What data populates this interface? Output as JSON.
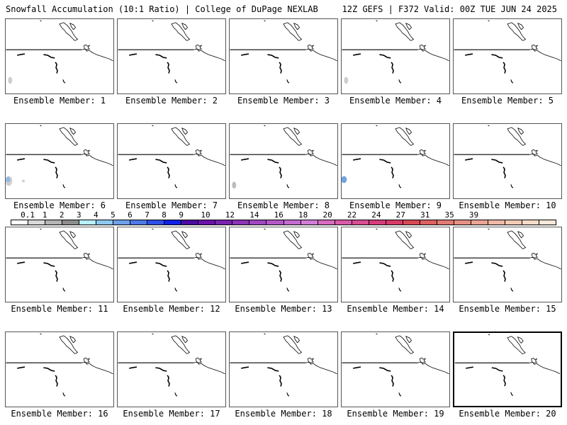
{
  "header": {
    "title_left": "Snowfall Accumulation (10:1 Ratio) | College of DuPage NEXLAB",
    "title_right": "12Z GEFS | F372 Valid: 00Z TUE JUN 24 2025"
  },
  "panels": [
    {
      "label": "Ensemble Member: 1",
      "snow_patches": [
        {
          "shape": "small-gray-patch",
          "color": "#cfcfcf"
        }
      ]
    },
    {
      "label": "Ensemble Member: 2",
      "snow_patches": []
    },
    {
      "label": "Ensemble Member: 3",
      "snow_patches": []
    },
    {
      "label": "Ensemble Member: 4",
      "snow_patches": [
        {
          "shape": "small-gray-patch",
          "color": "#cfcfcf"
        }
      ]
    },
    {
      "label": "Ensemble Member: 5",
      "snow_patches": []
    },
    {
      "label": "Ensemble Member: 6",
      "snow_patches": [
        {
          "shape": "blue-gray-patch",
          "color": "#8fb8e8"
        }
      ]
    },
    {
      "label": "Ensemble Member: 7",
      "snow_patches": []
    },
    {
      "label": "Ensemble Member: 8",
      "snow_patches": [
        {
          "shape": "small-gray-patch",
          "color": "#bdbdbd"
        }
      ]
    },
    {
      "label": "Ensemble Member: 9",
      "snow_patches": [
        {
          "shape": "blue-patch",
          "color": "#6fa4e0"
        }
      ]
    },
    {
      "label": "Ensemble Member: 10",
      "snow_patches": []
    },
    {
      "label": "Ensemble Member: 11",
      "snow_patches": []
    },
    {
      "label": "Ensemble Member: 12",
      "snow_patches": []
    },
    {
      "label": "Ensemble Member: 13",
      "snow_patches": []
    },
    {
      "label": "Ensemble Member: 14",
      "snow_patches": []
    },
    {
      "label": "Ensemble Member: 15",
      "snow_patches": []
    },
    {
      "label": "Ensemble Member: 16",
      "snow_patches": []
    },
    {
      "label": "Ensemble Member: 17",
      "snow_patches": []
    },
    {
      "label": "Ensemble Member: 18",
      "snow_patches": []
    },
    {
      "label": "Ensemble Member: 19",
      "snow_patches": []
    },
    {
      "label": "Ensemble Member: 20",
      "snow_patches": []
    }
  ],
  "colorbar": {
    "labels": [
      "0.1",
      "1",
      "2",
      "3",
      "4",
      "5",
      "6",
      "7",
      "8",
      "9",
      "10",
      "12",
      "14",
      "16",
      "18",
      "20",
      "22",
      "24",
      "27",
      "31",
      "35",
      "39"
    ],
    "colors": [
      "#ffffff",
      "#d8d8d8",
      "#b4b4b4",
      "#8c8c8c",
      "#b6f0ff",
      "#8cc8f0",
      "#6ea0ea",
      "#4d78e6",
      "#2f50e6",
      "#1020e6",
      "#4a0aa0",
      "#6a12a8",
      "#7a22b0",
      "#8a34b8",
      "#a046c0",
      "#b458c8",
      "#c66ad0",
      "#d27cd8",
      "#d86ac0",
      "#d85aa8",
      "#d84c92",
      "#d63c7c",
      "#d83a68",
      "#d84854",
      "#de6060",
      "#e27a74",
      "#e69084",
      "#eaa494",
      "#eeb8a6",
      "#f2cab6",
      "#f6dac8",
      "#fae8d8"
    ]
  }
}
